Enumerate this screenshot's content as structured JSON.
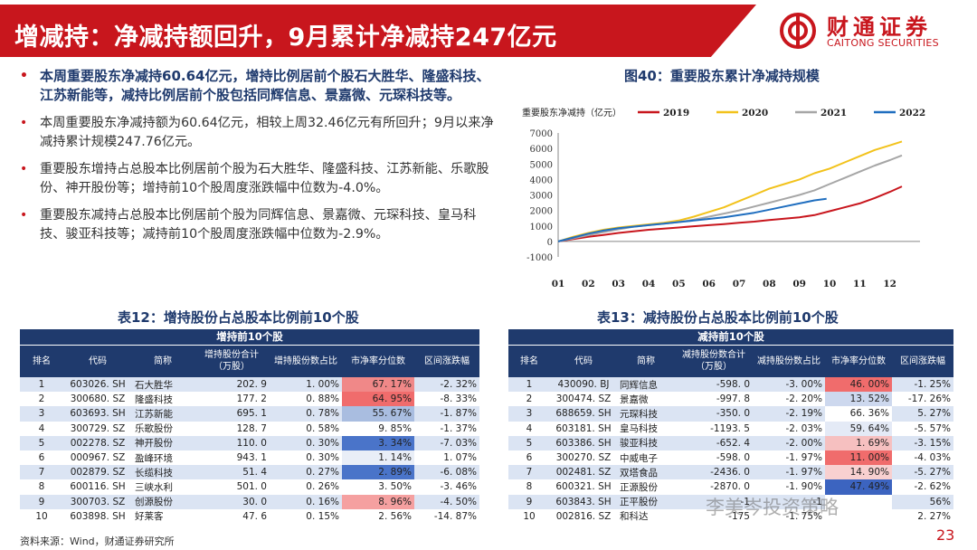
{
  "header": {
    "title": "增减持：净减持额回升，9月累计净减持247亿元",
    "logo_cn": "财通证券",
    "logo_en": "CAITONG SECURITIES"
  },
  "bullets": [
    {
      "text": "本周重要股东净减持60.64亿元，增持比例居前个股石大胜华、隆盛科技、江苏新能等，减持比例居前个股包括同辉信息、景嘉微、元琛科技等。",
      "bold": true
    },
    {
      "text": "本周重要股东净减持额为60.64亿元，相较上周32.46亿元有所回升；9月以来净减持累计规模247.76亿元。",
      "bold": false
    },
    {
      "text": "重要股东增持占总股本比例居前个股为石大胜华、隆盛科技、江苏新能、乐歌股份、神开股份等；增持前10个股周度涨跌幅中位数为-4.0%。",
      "bold": false
    },
    {
      "text": "重要股东减持占总股本比例居前个股为同辉信息、景嘉微、元琛科技、皇马科技、骏亚科技等；减持前10个股周度涨跌幅中位数为-2.9%。",
      "bold": false
    }
  ],
  "chart": {
    "title": "图40：重要股东累计净减持规模"
  },
  "chart_data": {
    "type": "line",
    "title": "",
    "ylabel": "重要股东净减持（亿元）",
    "xlabel": "",
    "x_ticks": [
      "01",
      "02",
      "03",
      "04",
      "05",
      "06",
      "07",
      "08",
      "09",
      "10",
      "11",
      "12"
    ],
    "ylim": [
      -1000,
      7000
    ],
    "y_ticks": [
      -1000,
      0,
      1000,
      2000,
      3000,
      4000,
      5000,
      6000,
      7000
    ],
    "legend_position": "top",
    "grid": false,
    "series": [
      {
        "name": "2019",
        "color": "#c8161d",
        "x": [
          1,
          1.5,
          2,
          2.5,
          3,
          3.5,
          4,
          4.5,
          5,
          5.5,
          6,
          6.5,
          7,
          7.5,
          8,
          8.5,
          9,
          9.5,
          10,
          10.5,
          11,
          11.5,
          12,
          12.4
        ],
        "y": [
          0,
          150,
          300,
          420,
          550,
          650,
          750,
          820,
          900,
          980,
          1050,
          1120,
          1200,
          1280,
          1380,
          1470,
          1560,
          1700,
          1950,
          2200,
          2450,
          2800,
          3200,
          3550
        ]
      },
      {
        "name": "2020",
        "color": "#f2c21b",
        "x": [
          1,
          1.5,
          2,
          2.5,
          3,
          3.5,
          4,
          4.5,
          5,
          5.5,
          6,
          6.5,
          7,
          7.5,
          8,
          8.5,
          9,
          9.5,
          10,
          10.5,
          11,
          11.5,
          12,
          12.4
        ],
        "y": [
          0,
          300,
          550,
          750,
          900,
          1000,
          1100,
          1200,
          1350,
          1600,
          1900,
          2200,
          2600,
          3000,
          3400,
          3700,
          4000,
          4400,
          4700,
          5100,
          5500,
          5900,
          6200,
          6450
        ]
      },
      {
        "name": "2021",
        "color": "#a6a6a6",
        "x": [
          1,
          1.5,
          2,
          2.5,
          3,
          3.5,
          4,
          4.5,
          5,
          5.5,
          6,
          6.5,
          7,
          7.5,
          8,
          8.5,
          9,
          9.5,
          10,
          10.5,
          11,
          11.5,
          12,
          12.4
        ],
        "y": [
          0,
          200,
          400,
          600,
          780,
          950,
          1050,
          1150,
          1250,
          1400,
          1600,
          1800,
          2000,
          2250,
          2500,
          2750,
          3000,
          3300,
          3700,
          4100,
          4500,
          4900,
          5250,
          5550
        ]
      },
      {
        "name": "2022",
        "color": "#1f6ebf",
        "x": [
          1,
          1.5,
          2,
          2.5,
          3,
          3.5,
          4,
          4.5,
          5,
          5.5,
          6,
          6.5,
          7,
          7.5,
          8,
          8.5,
          9,
          9.5,
          9.9
        ],
        "y": [
          0,
          250,
          500,
          700,
          850,
          950,
          1050,
          1150,
          1250,
          1350,
          1450,
          1550,
          1700,
          1850,
          2050,
          2250,
          2450,
          2650,
          2750
        ]
      }
    ]
  },
  "table12": {
    "title": "表12：增持股份占总股本比例前10个股",
    "group_header": "增持前10个股",
    "headers": [
      "排名",
      "代码",
      "简称",
      "增持股份合计（万股）",
      "增持股份数占比",
      "市净率分位数",
      "区间涨跌幅"
    ],
    "rows": [
      [
        "1",
        "603026. SH",
        "石大胜华",
        "202. 9",
        "1. 00%",
        "67. 17%",
        "-2. 32%"
      ],
      [
        "2",
        "300680. SZ",
        "隆盛科技",
        "177. 2",
        "0. 88%",
        "64. 95%",
        "-8. 33%"
      ],
      [
        "3",
        "603693. SH",
        "江苏新能",
        "695. 1",
        "0. 78%",
        "55. 67%",
        "-1. 87%"
      ],
      [
        "4",
        "300729. SZ",
        "乐歌股份",
        "128. 7",
        "0. 58%",
        "9. 85%",
        "-1. 37%"
      ],
      [
        "5",
        "002278. SZ",
        "神开股份",
        "110. 0",
        "0. 30%",
        "3. 34%",
        "-7. 03%"
      ],
      [
        "6",
        "000967. SZ",
        "盈峰环境",
        "943. 1",
        "0. 30%",
        "1. 14%",
        "1. 07%"
      ],
      [
        "7",
        "002879. SZ",
        "长缆科技",
        "51. 4",
        "0. 27%",
        "2. 89%",
        "-6. 08%"
      ],
      [
        "8",
        "600116. SH",
        "三峡水利",
        "501. 0",
        "0. 26%",
        "3. 50%",
        "-3. 46%"
      ],
      [
        "9",
        "300703. SZ",
        "创源股份",
        "30. 0",
        "0. 16%",
        "8. 96%",
        "-4. 50%"
      ],
      [
        "10",
        "603898. SH",
        "好莱客",
        "47. 6",
        "0. 15%",
        "2. 56%",
        "-14. 87%"
      ]
    ],
    "pb_colors": [
      "#f08888",
      "#f06c6c",
      "#a9bde0",
      "#ffffff",
      "#4a74c9",
      "#e9eef7",
      "#4a74c9",
      "#ffffff",
      "#f5a0a0",
      "#ffffff"
    ]
  },
  "table13": {
    "title": "表13：减持股份占总股本比例前10个股",
    "group_header": "减持前10个股",
    "headers": [
      "排名",
      "代码",
      "简称",
      "减持股份数合计（万股）",
      "减持股份数占比",
      "市净率分位数",
      "区间涨跌幅"
    ],
    "rows": [
      [
        "1",
        "430090. BJ",
        "同辉信息",
        "-598. 0",
        "-3. 00%",
        "46. 00%",
        "-1. 25%"
      ],
      [
        "2",
        "300474. SZ",
        "景嘉微",
        "-997. 8",
        "-2. 20%",
        "13. 52%",
        "-17. 26%"
      ],
      [
        "3",
        "688659. SH",
        "元琛科技",
        "-350. 0",
        "-2. 19%",
        "66. 36%",
        "5. 27%"
      ],
      [
        "4",
        "603181. SH",
        "皇马科技",
        "-1193. 5",
        "-2. 03%",
        "59. 64%",
        "-5. 57%"
      ],
      [
        "5",
        "603386. SH",
        "骏亚科技",
        "-652. 4",
        "-2. 00%",
        "1. 69%",
        "-3. 15%"
      ],
      [
        "6",
        "300270. SZ",
        "中威电子",
        "-598. 0",
        "-1. 97%",
        "11. 00%",
        "-4. 03%"
      ],
      [
        "7",
        "002481. SZ",
        "双塔食品",
        "-2436. 0",
        "-1. 97%",
        "14. 90%",
        "-5. 27%"
      ],
      [
        "8",
        "600321. SH",
        "正源股份",
        "-2870. 0",
        "-1. 90%",
        "47. 49%",
        "-2. 62%"
      ],
      [
        "9",
        "603843. SH",
        "正平股份",
        "-1",
        "-1",
        "",
        "56%"
      ],
      [
        "10",
        "002816. SZ",
        "和科达",
        "-175",
        "-1. 75%",
        "",
        "2. 27%"
      ]
    ],
    "pb_colors": [
      "#f06c6c",
      "#cdd8ee",
      "#ffffff",
      "#e4eaf6",
      "#f6c0c0",
      "#f06c6c",
      "#f8d0d0",
      "#3c64c0",
      "#ffffff",
      "#ffffff"
    ]
  },
  "footer": {
    "source": "资料来源：Wind，财通证券研究所",
    "page": "23",
    "watermark": "李美岑投资策略"
  }
}
